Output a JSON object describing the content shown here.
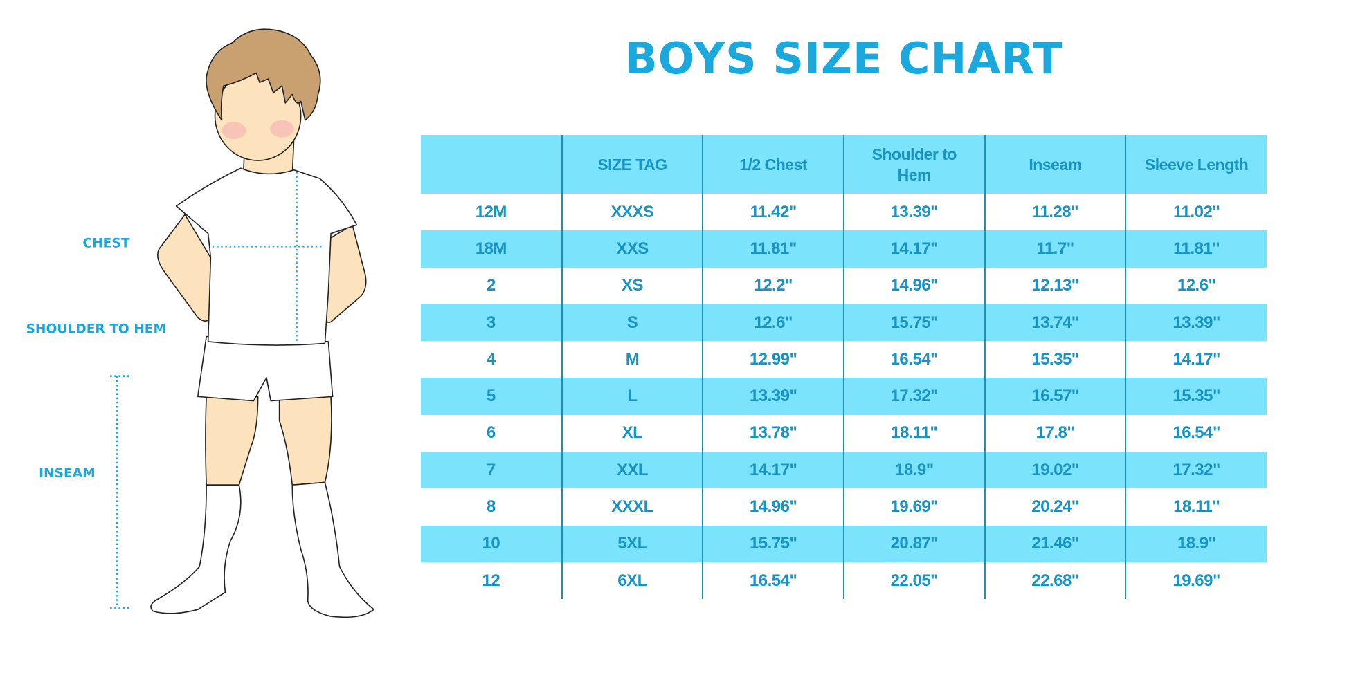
{
  "title": "BOYS SIZE CHART",
  "figure": {
    "labels": {
      "chest": "CHEST",
      "shoulder_to_hem": "SHOULDER TO HEM",
      "inseam": "INSEAM"
    },
    "accent_color": "#1aa7dc"
  },
  "colors": {
    "title": "#1ba8dd",
    "header_bg": "#7ce3fc",
    "stripe_bg": "#7ce3fc",
    "text": "#1794c4",
    "divider": "#1a8fc0"
  },
  "chart_data": {
    "type": "table",
    "title": "BOYS SIZE CHART",
    "columns": [
      "",
      "SIZE TAG",
      "1/2 Chest",
      "Shoulder to Hem",
      "Inseam",
      "Sleeve Length"
    ],
    "rows": [
      [
        "12M",
        "XXXS",
        "11.42\"",
        "13.39\"",
        "11.28\"",
        "11.02\""
      ],
      [
        "18M",
        "XXS",
        "11.81\"",
        "14.17\"",
        "11.7\"",
        "11.81\""
      ],
      [
        "2",
        "XS",
        "12.2\"",
        "14.96\"",
        "12.13\"",
        "12.6\""
      ],
      [
        "3",
        "S",
        "12.6\"",
        "15.75\"",
        "13.74\"",
        "13.39\""
      ],
      [
        "4",
        "M",
        "12.99\"",
        "16.54\"",
        "15.35\"",
        "14.17\""
      ],
      [
        "5",
        "L",
        "13.39\"",
        "17.32\"",
        "16.57\"",
        "15.35\""
      ],
      [
        "6",
        "XL",
        "13.78\"",
        "18.11\"",
        "17.8\"",
        "16.54\""
      ],
      [
        "7",
        "XXL",
        "14.17\"",
        "18.9\"",
        "19.02\"",
        "17.32\""
      ],
      [
        "8",
        "XXXL",
        "14.96\"",
        "19.69\"",
        "20.24\"",
        "18.11\""
      ],
      [
        "10",
        "5XL",
        "15.75\"",
        "20.87\"",
        "21.46\"",
        "18.9\""
      ],
      [
        "12",
        "6XL",
        "16.54\"",
        "22.05\"",
        "22.68\"",
        "19.69\""
      ]
    ]
  }
}
